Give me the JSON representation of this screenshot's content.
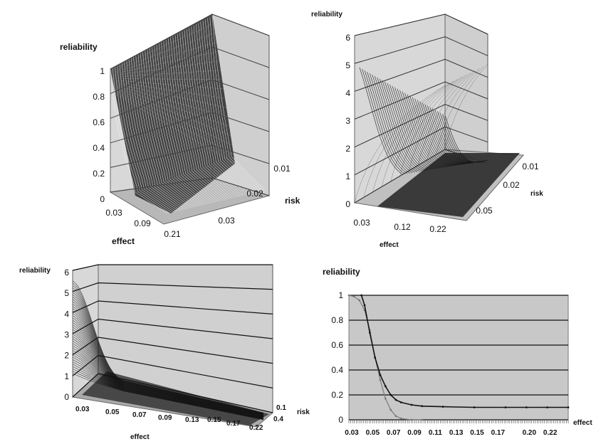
{
  "chart_data": [
    {
      "type": "surface",
      "panel": "top-left",
      "zlabel": "reliability",
      "xlabel": "effect",
      "ylabel": "risk",
      "z_ticks": [
        "0",
        "0.2",
        "0.4",
        "0.6",
        "0.8",
        "1"
      ],
      "z_values": [
        0,
        0.2,
        0.4,
        0.6,
        0.8,
        1
      ],
      "zlim": [
        0,
        1
      ],
      "x_ticks": [
        "0.03",
        "0.09",
        "0.21"
      ],
      "y_ticks": [
        "0.01",
        "0.02",
        "0.03"
      ],
      "description_values": {
        "effect_min": 0.03,
        "effect_max": 0.21,
        "risk_min": 0.01,
        "risk_max": 0.03
      }
    },
    {
      "type": "surface",
      "panel": "top-right",
      "zlabel": "reliability",
      "xlabel": "effect",
      "ylabel": "risk",
      "z_ticks": [
        "0",
        "1",
        "2",
        "3",
        "4",
        "5",
        "6"
      ],
      "z_values": [
        0,
        1,
        2,
        3,
        4,
        5,
        6
      ],
      "zlim": [
        0,
        6
      ],
      "x_ticks": [
        "0.03",
        "0.12",
        "0.22"
      ],
      "y_ticks": [
        "0.01",
        "0.02",
        "0.05"
      ]
    },
    {
      "type": "surface",
      "panel": "bottom-left",
      "zlabel": "reliability",
      "xlabel": "effect",
      "ylabel": "risk",
      "z_ticks": [
        "0",
        "1",
        "2",
        "3",
        "4",
        "5",
        "6"
      ],
      "z_values": [
        0,
        1,
        2,
        3,
        4,
        5,
        6
      ],
      "zlim": [
        0,
        6
      ],
      "x_ticks": [
        "0.03",
        "0.05",
        "0.07",
        "0.09",
        "0.13",
        "0.15",
        "0.17",
        "0.22"
      ],
      "y_ticks": [
        "0.1",
        "0.4"
      ]
    },
    {
      "type": "line",
      "panel": "bottom-right",
      "ylabel": "reliability",
      "xlabel": "effect",
      "y_ticks": [
        "0",
        "0.2",
        "0.4",
        "0.6",
        "0.8",
        "1"
      ],
      "y_values": [
        0,
        0.2,
        0.4,
        0.6,
        0.8,
        1
      ],
      "ylim": [
        0,
        1
      ],
      "x_ticks": [
        "0.03",
        "0.05",
        "0.07",
        "0.09",
        "0.11",
        "0.13",
        "0.15",
        "0.17",
        "0.20",
        "0.22"
      ],
      "grid": true,
      "series": [
        {
          "x": [
            0.03,
            0.035,
            0.04,
            0.045,
            0.05,
            0.055,
            0.06,
            0.065,
            0.07,
            0.075,
            0.08,
            0.09,
            0.1
          ],
          "y": [
            1.0,
            0.99,
            0.96,
            0.88,
            0.72,
            0.5,
            0.32,
            0.17,
            0.08,
            0.03,
            0.01,
            0.0,
            0.0
          ]
        },
        {
          "x": [
            0.042,
            0.045,
            0.05,
            0.055,
            0.06,
            0.065,
            0.07,
            0.075,
            0.08,
            0.09,
            0.1,
            0.12,
            0.15,
            0.18,
            0.2,
            0.22,
            0.24
          ],
          "y": [
            1.0,
            0.92,
            0.7,
            0.5,
            0.36,
            0.27,
            0.2,
            0.16,
            0.14,
            0.12,
            0.11,
            0.105,
            0.1,
            0.1,
            0.1,
            0.1,
            0.1
          ]
        }
      ]
    }
  ]
}
